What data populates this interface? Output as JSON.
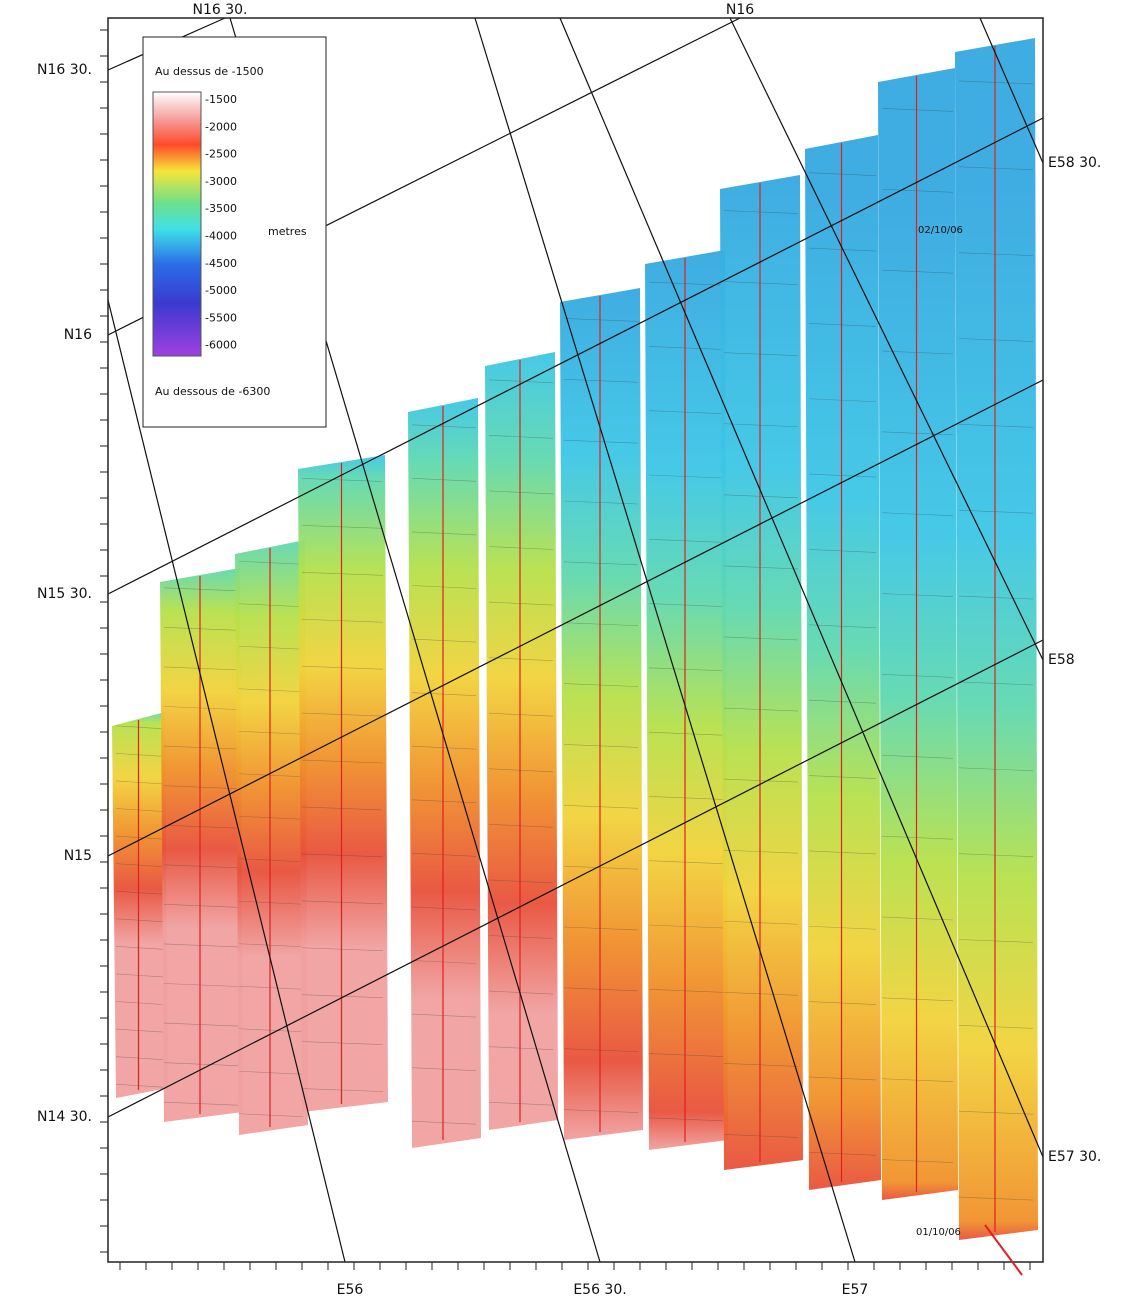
{
  "graticule": {
    "top": [
      "N16 30.",
      "N16"
    ],
    "left": [
      "N16 30.",
      "N16",
      "N15 30.",
      "N15",
      "N14 30."
    ],
    "right": [
      "E58 30.",
      "E58",
      "E57 30."
    ],
    "bottom": [
      "E56",
      "E56 30.",
      "E57"
    ]
  },
  "legend": {
    "above": "Au dessus de -1500",
    "levels": [
      "-1500",
      "-2000",
      "-2500",
      "-3000",
      "-3500",
      "-4000",
      "-4500",
      "-5000",
      "-5500",
      "-6000"
    ],
    "unit": "metres",
    "below": "Au dessous de -6300"
  },
  "annotations": [
    "02/10/06",
    "01/10/06"
  ]
}
